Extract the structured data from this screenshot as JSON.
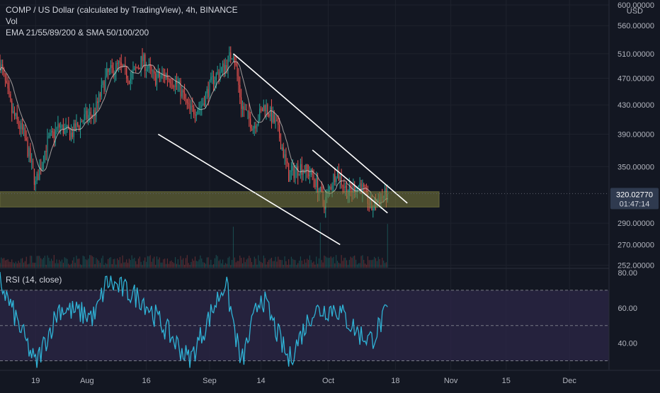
{
  "header": {
    "title": "COMP / US Dollar (calculated by TradingView), 4h, BINANCE",
    "vol_label": "Vol",
    "ma_label": "EMA 21/55/89/200 & SMA 50/100/200"
  },
  "rsi_panel": {
    "title": "RSI (14, close)"
  },
  "price_badge": {
    "price": "320.02770",
    "countdown": "01:47:14"
  },
  "colors": {
    "background": "#131722",
    "up": "#26a69a",
    "down": "#ef5350",
    "grid": "#1e222d",
    "text": "#b2b5be",
    "trendline": "#ffffff",
    "support_zone": "#7a7a3a",
    "rsi_line": "#2fb3d6",
    "rsi_band": "#2b2545",
    "badge": "#2f3a4f"
  },
  "chart_data": [
    {
      "type": "candlestick",
      "symbol": "COMP / US Dollar",
      "interval": "4h",
      "exchange": "BINANCE",
      "y_axis": {
        "unit": "USD",
        "scale": "log",
        "ticks": [
          252,
          270,
          290,
          350,
          390,
          430,
          470,
          510,
          560,
          600
        ],
        "tick_labels": [
          "252.00000",
          "270.00000",
          "290.00000",
          "350.00000",
          "390.00000",
          "430.00000",
          "470.00000",
          "510.00000",
          "560.00000",
          "600.00000"
        ],
        "range": [
          250,
          610
        ]
      },
      "x_axis": {
        "tick_labels": [
          "19",
          "Aug",
          "16",
          "Sep",
          "14",
          "Oct",
          "18",
          "Nov",
          "15",
          "Dec"
        ],
        "range": [
          "2021-07-10",
          "2021-12-11"
        ]
      },
      "key_points": [
        {
          "date": "2021-07-10",
          "price": 495
        },
        {
          "date": "2021-07-13",
          "price": 420
        },
        {
          "date": "2021-07-16",
          "price": 390
        },
        {
          "date": "2021-07-19",
          "price": 330
        },
        {
          "date": "2021-07-22",
          "price": 380
        },
        {
          "date": "2021-07-25",
          "price": 400
        },
        {
          "date": "2021-07-28",
          "price": 390
        },
        {
          "date": "2021-07-31",
          "price": 410
        },
        {
          "date": "2021-08-03",
          "price": 420
        },
        {
          "date": "2021-08-06",
          "price": 475
        },
        {
          "date": "2021-08-09",
          "price": 490
        },
        {
          "date": "2021-08-12",
          "price": 470
        },
        {
          "date": "2021-08-15",
          "price": 500
        },
        {
          "date": "2021-08-18",
          "price": 470
        },
        {
          "date": "2021-08-21",
          "price": 475
        },
        {
          "date": "2021-08-24",
          "price": 460
        },
        {
          "date": "2021-08-27",
          "price": 420
        },
        {
          "date": "2021-08-30",
          "price": 430
        },
        {
          "date": "2021-09-02",
          "price": 470
        },
        {
          "date": "2021-09-05",
          "price": 490
        },
        {
          "date": "2021-09-07",
          "price": 515
        },
        {
          "date": "2021-09-09",
          "price": 430
        },
        {
          "date": "2021-09-12",
          "price": 400
        },
        {
          "date": "2021-09-15",
          "price": 430
        },
        {
          "date": "2021-09-18",
          "price": 400
        },
        {
          "date": "2021-09-21",
          "price": 340
        },
        {
          "date": "2021-09-24",
          "price": 350
        },
        {
          "date": "2021-09-27",
          "price": 340
        },
        {
          "date": "2021-09-30",
          "price": 310
        },
        {
          "date": "2021-10-03",
          "price": 345
        },
        {
          "date": "2021-10-06",
          "price": 320
        },
        {
          "date": "2021-10-09",
          "price": 330
        },
        {
          "date": "2021-10-12",
          "price": 305
        },
        {
          "date": "2021-10-14",
          "price": 315
        },
        {
          "date": "2021-10-16",
          "price": 320.0277
        }
      ],
      "last_price": 320.0277,
      "support_zone": {
        "low": 306,
        "high": 322
      },
      "trendlines": [
        {
          "name": "upper-channel",
          "from": {
            "date": "2021-09-07",
            "price": 510
          },
          "to": {
            "date": "2021-10-21",
            "price": 310
          }
        },
        {
          "name": "lower-channel",
          "from": {
            "date": "2021-08-19",
            "price": 390
          },
          "to": {
            "date": "2021-10-04",
            "price": 270
          }
        },
        {
          "name": "converging-top",
          "from": {
            "date": "2021-09-27",
            "price": 370
          },
          "to": {
            "date": "2021-10-16",
            "price": 300
          }
        }
      ],
      "volume": {
        "note": "volume histogram at bottom of price pane; spikes near Sep 7, Sep 29 and Oct 16"
      }
    },
    {
      "type": "line",
      "name": "RSI (14, close)",
      "y_axis": {
        "ticks": [
          40,
          60,
          80
        ],
        "tick_labels": [
          "40.00",
          "60.00",
          "80.00"
        ],
        "range": [
          25,
          82
        ]
      },
      "band": {
        "low": 30,
        "high": 70
      },
      "midline": 50,
      "key_points": [
        {
          "date": "2021-07-10",
          "value": 75
        },
        {
          "date": "2021-07-19",
          "value": 28
        },
        {
          "date": "2021-07-25",
          "value": 60
        },
        {
          "date": "2021-08-03",
          "value": 55
        },
        {
          "date": "2021-08-06",
          "value": 75
        },
        {
          "date": "2021-08-15",
          "value": 65
        },
        {
          "date": "2021-08-27",
          "value": 30
        },
        {
          "date": "2021-09-05",
          "value": 75
        },
        {
          "date": "2021-09-09",
          "value": 28
        },
        {
          "date": "2021-09-14",
          "value": 68
        },
        {
          "date": "2021-09-21",
          "value": 30
        },
        {
          "date": "2021-09-27",
          "value": 58
        },
        {
          "date": "2021-10-03",
          "value": 60
        },
        {
          "date": "2021-10-09",
          "value": 45
        },
        {
          "date": "2021-10-12",
          "value": 42
        },
        {
          "date": "2021-10-16",
          "value": 58
        }
      ]
    }
  ]
}
